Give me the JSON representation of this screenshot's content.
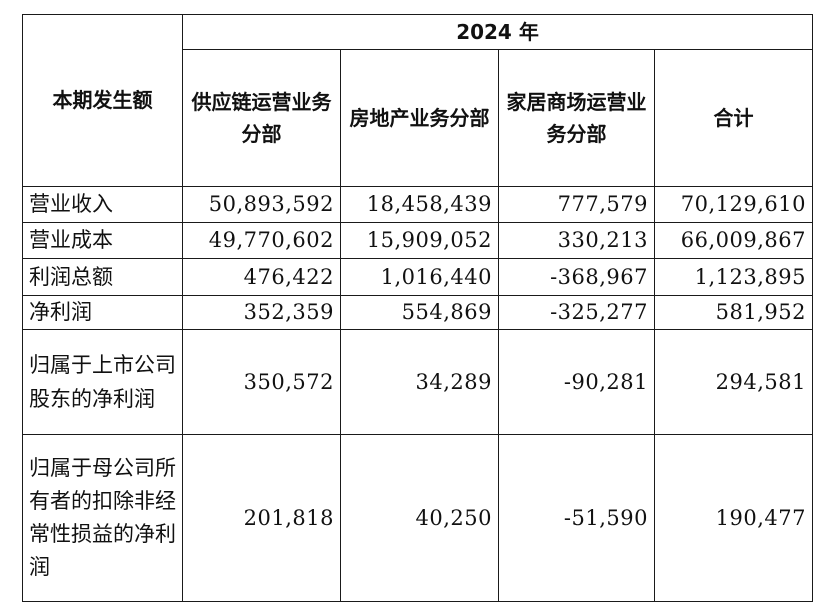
{
  "table": {
    "corner_label": "本期发生额",
    "year_label": "2024 年",
    "columns": [
      "供应链运营业务分部",
      "房地产业务分部",
      "家居商场运营业务分部",
      "合计"
    ],
    "rows": [
      {
        "label": "营业收入",
        "values": [
          "50,893,592",
          "18,458,439",
          "777,579",
          "70,129,610"
        ]
      },
      {
        "label": "营业成本",
        "values": [
          "49,770,602",
          "15,909,052",
          "330,213",
          "66,009,867"
        ]
      },
      {
        "label": "利润总额",
        "values": [
          "476,422",
          "1,016,440",
          "-368,967",
          "1,123,895"
        ]
      },
      {
        "label": "净利润",
        "values": [
          "352,359",
          "554,869",
          "-325,277",
          "581,952"
        ]
      },
      {
        "label": "归属于上市公司股东的净利润",
        "values": [
          "350,572",
          "34,289",
          "-90,281",
          "294,581"
        ]
      },
      {
        "label": "归属于母公司所有者的扣除非经常性损益的净利润",
        "values": [
          "201,818",
          "40,250",
          "-51,590",
          "190,477"
        ]
      }
    ]
  }
}
